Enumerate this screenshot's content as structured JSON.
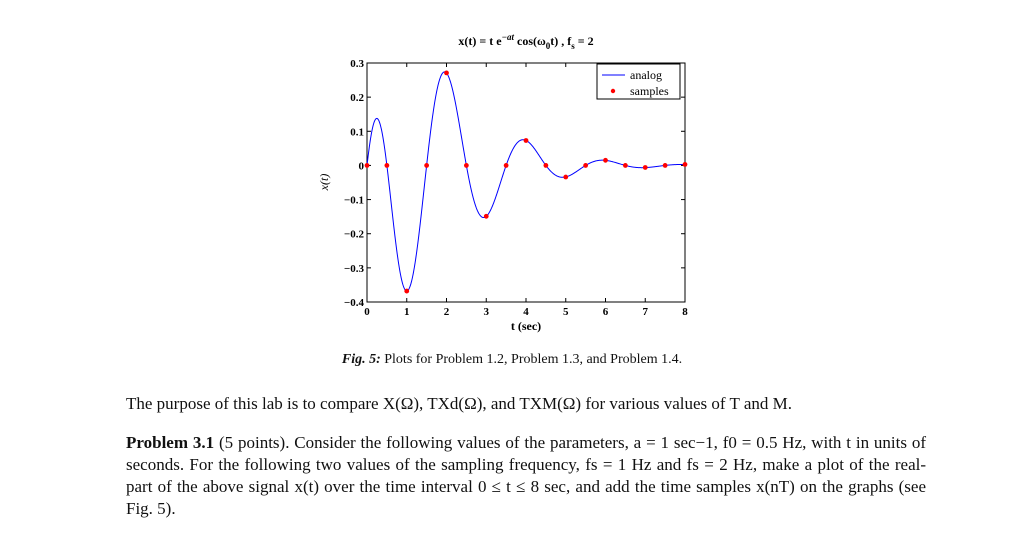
{
  "chart_data": {
    "type": "line",
    "title": "x(t) = t e^{-at} cos(ω0 t) ,   fs = 2",
    "title_parts": {
      "main": "x(t) = t e",
      "exp": "−at",
      "mid": " cos(ω",
      "sub0": "0",
      "end": "t) ,   f",
      "subs": "s",
      "tail": " = 2"
    },
    "xlabel": "t  (sec)",
    "ylabel": "x(t)",
    "xlim": [
      0,
      8
    ],
    "ylim": [
      -0.4,
      0.3
    ],
    "xticks": [
      "0",
      "1",
      "2",
      "3",
      "4",
      "5",
      "6",
      "7",
      "8"
    ],
    "yticks": [
      "0.3",
      "0.2",
      "0.1",
      "0",
      "−0.1",
      "−0.2",
      "−0.3",
      "−0.4"
    ],
    "legend_position": "top-right",
    "series": [
      {
        "name": "analog",
        "color": "#0000ff",
        "style": "line",
        "function": "t*exp(-t)*cos(pi*t)",
        "x_range": [
          0,
          8
        ]
      },
      {
        "name": "samples",
        "color": "#ff0000",
        "style": "dots",
        "x": [
          0,
          0.5,
          1,
          1.5,
          2,
          2.5,
          3,
          3.5,
          4,
          4.5,
          5,
          5.5,
          6,
          6.5,
          7,
          7.5,
          8
        ],
        "y": [
          0,
          0,
          -0.368,
          0,
          0.271,
          0,
          -0.149,
          0,
          0.073,
          0,
          -0.034,
          0,
          0.015,
          0,
          -0.006,
          0,
          0.003
        ]
      }
    ]
  },
  "caption": {
    "label": "Fig. 5:",
    "text": " Plots for Problem 1.2, Problem 1.3, and Problem 1.4."
  },
  "paragraph1": "The purpose of this lab is to compare X(Ω), TXd(Ω), and TXM(Ω) for various values of T and M.",
  "paragraph2": {
    "head": "Problem 3.1",
    "text": "(5 points). Consider the following values of the parameters, a = 1 sec−1, f0 = 0.5 Hz, with t in units of seconds. For the following two values of the sampling frequency, fs = 1 Hz and fs = 2 Hz, make a plot of the real-part of the above signal x(t) over the time interval 0 ≤ t ≤ 8 sec, and add the time samples x(nT) on the graphs (see Fig. 5)."
  }
}
